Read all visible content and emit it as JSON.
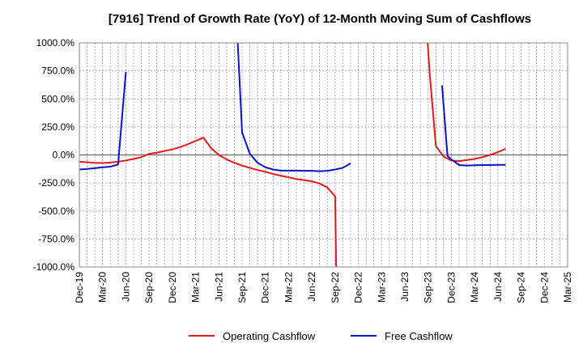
{
  "chart_data": {
    "type": "line",
    "title": "[7916]  Trend of Growth Rate (YoY) of 12-Month Moving Sum of Cashflows",
    "xlabel": "",
    "ylabel": "",
    "ylim": [
      -1000,
      1000
    ],
    "yticks": [
      "1000.0%",
      "750.0%",
      "500.0%",
      "250.0%",
      "0.0%",
      "-250.0%",
      "-500.0%",
      "-750.0%",
      "-1000.0%"
    ],
    "ytick_values": [
      1000,
      750,
      500,
      250,
      0,
      -250,
      -500,
      -750,
      -1000
    ],
    "xticks": [
      "Dec-19",
      "Mar-20",
      "Jun-20",
      "Sep-20",
      "Dec-20",
      "Mar-21",
      "Jun-21",
      "Sep-21",
      "Dec-21",
      "Mar-22",
      "Jun-22",
      "Sep-22",
      "Dec-22",
      "Mar-23",
      "Jun-23",
      "Sep-23",
      "Dec-23",
      "Mar-24",
      "Jun-24",
      "Sep-24",
      "Dec-24",
      "Mar-25"
    ],
    "grid": true,
    "legend": "bottom",
    "series": [
      {
        "name": "Operating Cashflow",
        "color": "#e31a1c",
        "segments": [
          [
            [
              0,
              -60
            ],
            [
              1,
              -65
            ],
            [
              2,
              -70
            ],
            [
              3,
              -72
            ],
            [
              4,
              -68
            ],
            [
              5,
              -60
            ],
            [
              6,
              -50
            ],
            [
              7,
              -35
            ],
            [
              8,
              -20
            ],
            [
              9,
              10
            ],
            [
              10,
              20
            ],
            [
              11,
              35
            ],
            [
              12,
              50
            ],
            [
              13,
              70
            ],
            [
              14,
              95
            ],
            [
              15,
              125
            ],
            [
              16,
              155
            ],
            [
              17,
              60
            ],
            [
              18,
              0
            ],
            [
              19,
              -40
            ],
            [
              20,
              -70
            ],
            [
              21,
              -95
            ],
            [
              22,
              -115
            ],
            [
              23,
              -135
            ],
            [
              24,
              -150
            ],
            [
              25,
              -170
            ],
            [
              26,
              -185
            ],
            [
              27,
              -200
            ],
            [
              28,
              -215
            ],
            [
              29,
              -225
            ],
            [
              30,
              -235
            ],
            [
              31,
              -255
            ],
            [
              32,
              -290
            ],
            [
              33,
              -370
            ],
            [
              33.15,
              -1050
            ]
          ],
          [
            [
              44.9,
              1050
            ],
            [
              45.2,
              730
            ],
            [
              46,
              80
            ],
            [
              47,
              -15
            ],
            [
              48,
              -50
            ],
            [
              49,
              -55
            ],
            [
              50,
              -45
            ],
            [
              51,
              -35
            ],
            [
              52,
              -20
            ],
            [
              53,
              0
            ],
            [
              54,
              25
            ],
            [
              55,
              55
            ]
          ]
        ]
      },
      {
        "name": "Free Cashflow",
        "color": "#0a14c8",
        "segments": [
          [
            [
              0,
              -130
            ],
            [
              1,
              -125
            ],
            [
              2,
              -118
            ],
            [
              3,
              -110
            ],
            [
              4,
              -105
            ],
            [
              5,
              -85
            ],
            [
              6,
              740
            ]
          ],
          [
            [
              20.4,
              1050
            ],
            [
              21,
              200
            ],
            [
              22,
              10
            ],
            [
              23,
              -70
            ],
            [
              24,
              -110
            ],
            [
              25,
              -130
            ],
            [
              26,
              -140
            ],
            [
              27,
              -140
            ],
            [
              28,
              -140
            ],
            [
              29,
              -142
            ],
            [
              30,
              -142
            ],
            [
              31,
              -145
            ],
            [
              32,
              -142
            ],
            [
              33,
              -130
            ],
            [
              34,
              -115
            ],
            [
              35,
              -75
            ]
          ],
          [
            [
              46.8,
              620
            ],
            [
              47.5,
              -10
            ],
            [
              48,
              -40
            ],
            [
              49,
              -90
            ],
            [
              50,
              -95
            ],
            [
              51,
              -92
            ],
            [
              52,
              -90
            ],
            [
              53,
              -90
            ],
            [
              54,
              -88
            ],
            [
              55,
              -88
            ]
          ]
        ]
      }
    ]
  }
}
